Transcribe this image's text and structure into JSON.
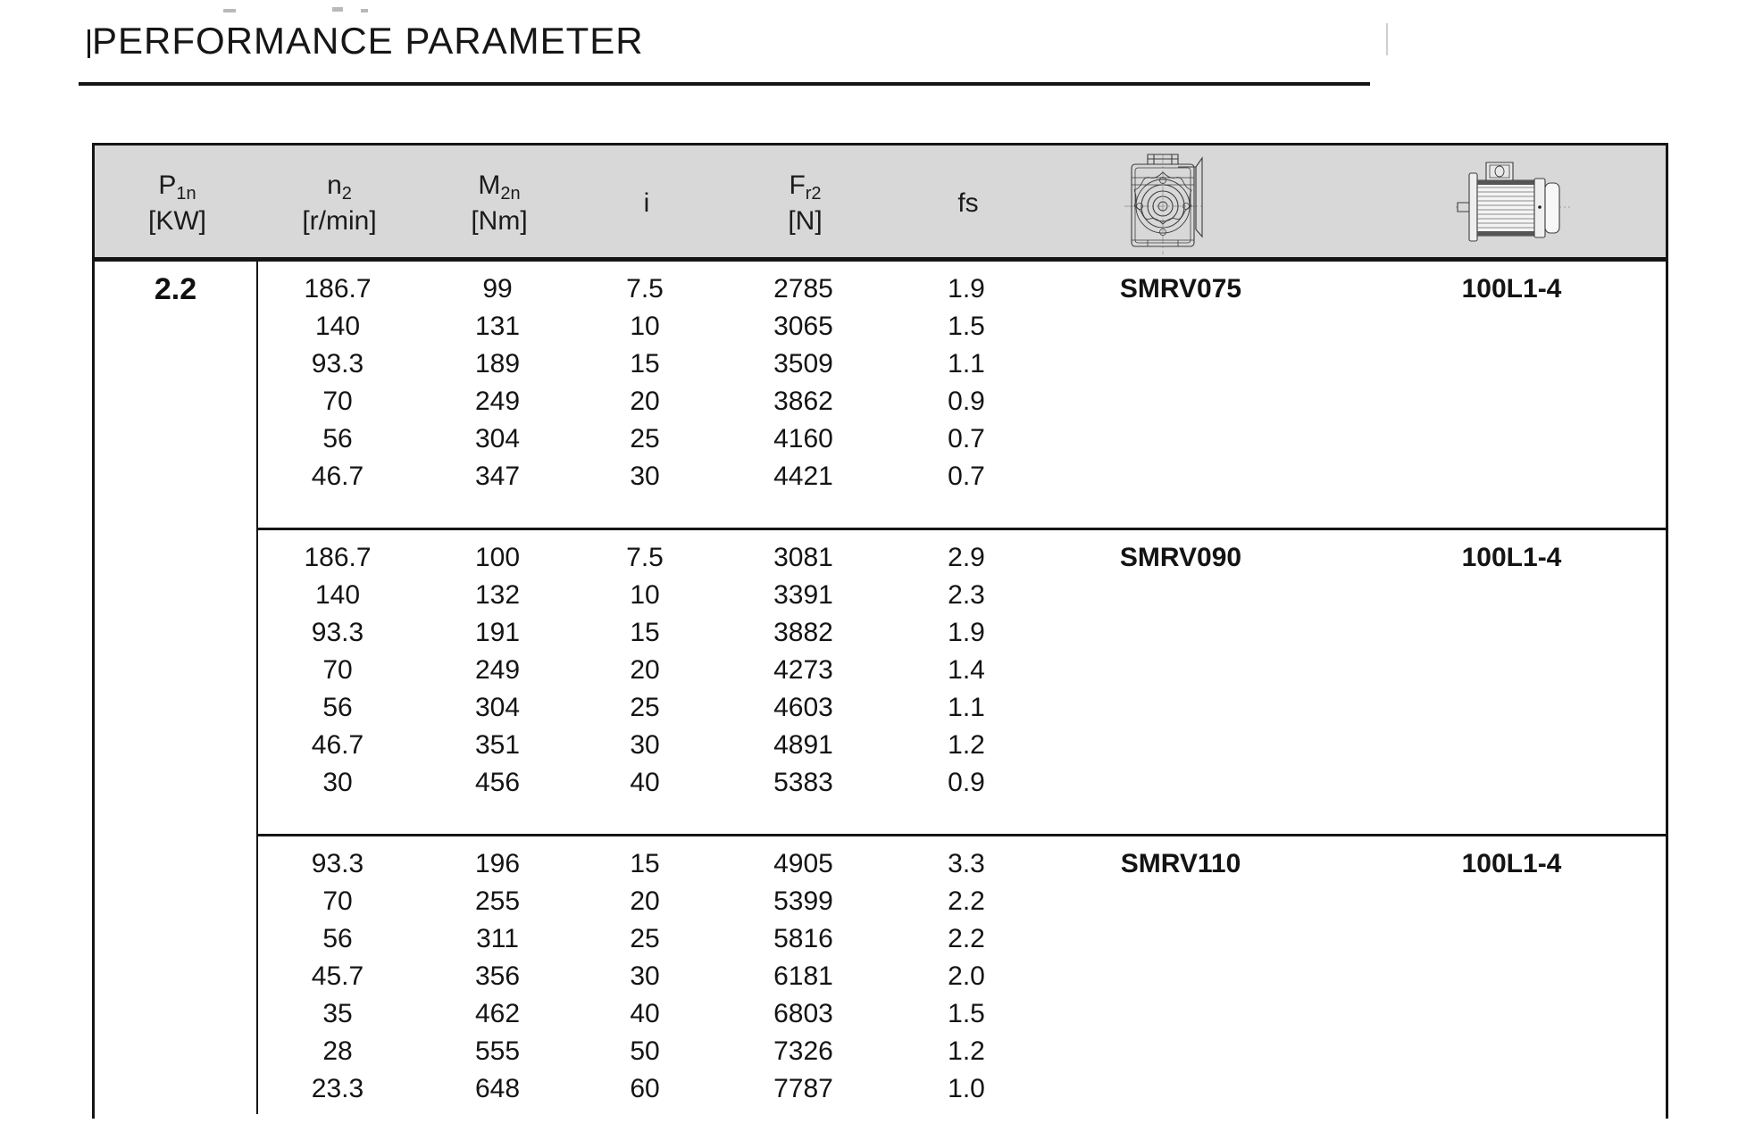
{
  "title": "PERFORMANCE PARAMETER",
  "table": {
    "headers": {
      "p1n": {
        "symbol": "P",
        "sub": "1n",
        "unit": "[KW]"
      },
      "n2": {
        "symbol": "n",
        "sub": "2",
        "unit": "[r/min]"
      },
      "m2n": {
        "symbol": "M",
        "sub": "2n",
        "unit": "[Nm]"
      },
      "i": {
        "symbol": "i",
        "sub": "",
        "unit": ""
      },
      "fr2": {
        "symbol": "F",
        "sub": "r2",
        "unit": "[N]"
      },
      "fs": {
        "symbol": "fs",
        "sub": "",
        "unit": ""
      },
      "gearbox_icon": "gearbox-front-view-drawing-icon",
      "motor_icon": "electric-motor-side-view-drawing-icon"
    },
    "p1n_value": "2.2",
    "columns": [
      "n2 [r/min]",
      "M2n [Nm]",
      "i",
      "Fr2 [N]",
      "fs",
      "gearbox",
      "motor"
    ],
    "groups": [
      {
        "gearbox": "SMRV075",
        "motor": "100L1-4",
        "rows": [
          [
            "186.7",
            "99",
            "7.5",
            "2785",
            "1.9"
          ],
          [
            "140",
            "131",
            "10",
            "3065",
            "1.5"
          ],
          [
            "93.3",
            "189",
            "15",
            "3509",
            "1.1"
          ],
          [
            "70",
            "249",
            "20",
            "3862",
            "0.9"
          ],
          [
            "56",
            "304",
            "25",
            "4160",
            "0.7"
          ],
          [
            "46.7",
            "347",
            "30",
            "4421",
            "0.7"
          ]
        ]
      },
      {
        "gearbox": "SMRV090",
        "motor": "100L1-4",
        "rows": [
          [
            "186.7",
            "100",
            "7.5",
            "3081",
            "2.9"
          ],
          [
            "140",
            "132",
            "10",
            "3391",
            "2.3"
          ],
          [
            "93.3",
            "191",
            "15",
            "3882",
            "1.9"
          ],
          [
            "70",
            "249",
            "20",
            "4273",
            "1.4"
          ],
          [
            "56",
            "304",
            "25",
            "4603",
            "1.1"
          ],
          [
            "46.7",
            "351",
            "30",
            "4891",
            "1.2"
          ],
          [
            "30",
            "456",
            "40",
            "5383",
            "0.9"
          ]
        ]
      },
      {
        "gearbox": "SMRV110",
        "motor": "100L1-4",
        "rows": [
          [
            "93.3",
            "196",
            "15",
            "4905",
            "3.3"
          ],
          [
            "70",
            "255",
            "20",
            "5399",
            "2.2"
          ],
          [
            "56",
            "311",
            "25",
            "5816",
            "2.2"
          ],
          [
            "45.7",
            "356",
            "30",
            "6181",
            "2.0"
          ],
          [
            "35",
            "462",
            "40",
            "6803",
            "1.5"
          ],
          [
            "28",
            "555",
            "50",
            "7326",
            "1.2"
          ],
          [
            "23.3",
            "648",
            "60",
            "7787",
            "1.0"
          ]
        ]
      }
    ]
  },
  "colors": {
    "header_bg": "#d8d8d8",
    "border": "#151515",
    "text": "#141414"
  }
}
